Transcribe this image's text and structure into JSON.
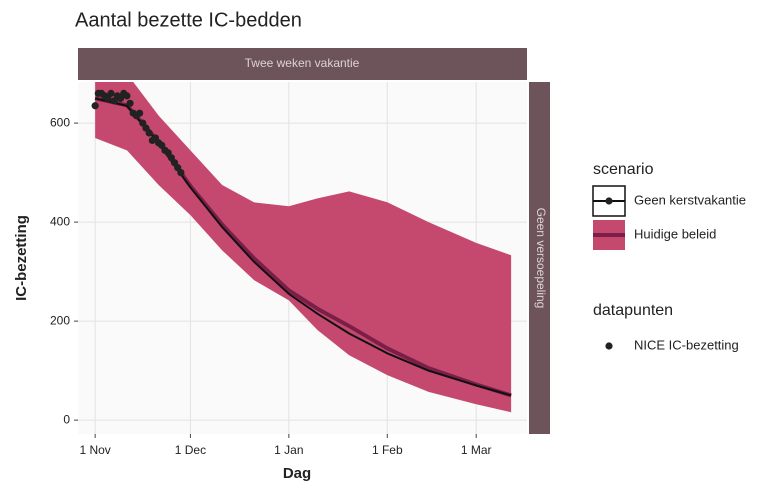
{
  "chart_data": {
    "type": "line",
    "title": "Aantal bezette IC-bedden",
    "x_label": "Dag",
    "y_label": "IC-bezetting",
    "facet_top": "Twee weken vakantie",
    "facet_right": "Geen versoepeling",
    "x": [
      0,
      10,
      20,
      30,
      40,
      50,
      61,
      70,
      80,
      92,
      105,
      120,
      131
    ],
    "xlim": [
      -5.4,
      136
    ],
    "xticks": [
      {
        "value": 0,
        "label": "1 Nov"
      },
      {
        "value": 30,
        "label": "1 Dec"
      },
      {
        "value": 61,
        "label": "1 Jan"
      },
      {
        "value": 92,
        "label": "1 Feb"
      },
      {
        "value": 120,
        "label": "1 Mar"
      }
    ],
    "ylim": [
      -28,
      683
    ],
    "yticks": [
      0,
      200,
      400,
      600
    ],
    "grid": true,
    "legend_title": "scenario",
    "series": [
      {
        "name": "Geen kerstvakantie",
        "color": "#111111",
        "values": [
          650,
          635,
          560,
          470,
          390,
          320,
          255,
          215,
          175,
          135,
          100,
          70,
          50
        ]
      },
      {
        "name": "Huidige beleid",
        "color": "#7b1f48",
        "band_color": "#c5496f",
        "values": [
          650,
          636,
          562,
          473,
          395,
          327,
          262,
          225,
          190,
          145,
          105,
          72,
          50
        ],
        "lower": [
          570,
          545,
          475,
          414,
          343,
          283,
          242,
          182,
          131,
          91,
          57,
          32,
          16
        ],
        "upper": [
          720,
          700,
          615,
          545,
          475,
          440,
          432,
          448,
          462,
          440,
          400,
          358,
          333
        ]
      }
    ],
    "points": {
      "legend_title": "datapunten",
      "name": "NICE IC-bezetting",
      "color": "#222222",
      "x": [
        0,
        1,
        2,
        3,
        4,
        5,
        6,
        7,
        8,
        9,
        10,
        11,
        12,
        13,
        14,
        15,
        16,
        17,
        18,
        19,
        20,
        21,
        22,
        23,
        24,
        25,
        26,
        27
      ],
      "values": [
        635,
        660,
        660,
        655,
        650,
        660,
        645,
        655,
        650,
        660,
        655,
        640,
        620,
        615,
        620,
        600,
        590,
        580,
        565,
        570,
        560,
        555,
        545,
        540,
        530,
        520,
        510,
        500
      ]
    }
  }
}
